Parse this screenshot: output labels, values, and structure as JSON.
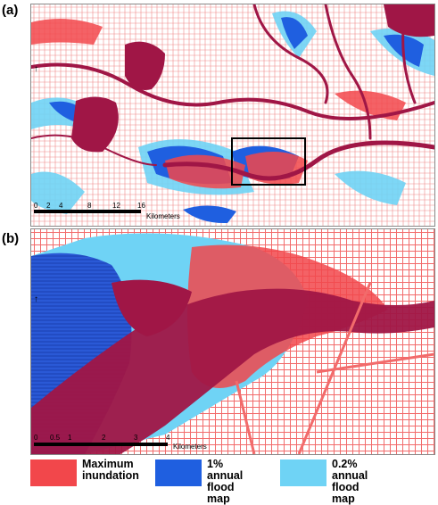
{
  "panels": {
    "a": {
      "label": "(a)",
      "scale_ticks": [
        "0",
        "2",
        "4",
        "8",
        "12",
        "16"
      ],
      "scale_unit": "Kilometers"
    },
    "b": {
      "label": "(b)",
      "scale_ticks": [
        "0",
        "0.5",
        "1",
        "2",
        "3",
        "4"
      ],
      "scale_unit": "Kilometers"
    }
  },
  "legend": [
    {
      "label": "Maximum\ninundation",
      "color": "#f2474b"
    },
    {
      "label": "1% annual\nflood map",
      "color": "#1f5fe0"
    },
    {
      "label": "0.2% annual\nflood map",
      "color": "#6fd3f5"
    }
  ],
  "colors": {
    "river": "#a01646",
    "inundation": "#f2474b",
    "flood_1pct": "#1f5fe0",
    "flood_02pct": "#6fd3f5"
  }
}
